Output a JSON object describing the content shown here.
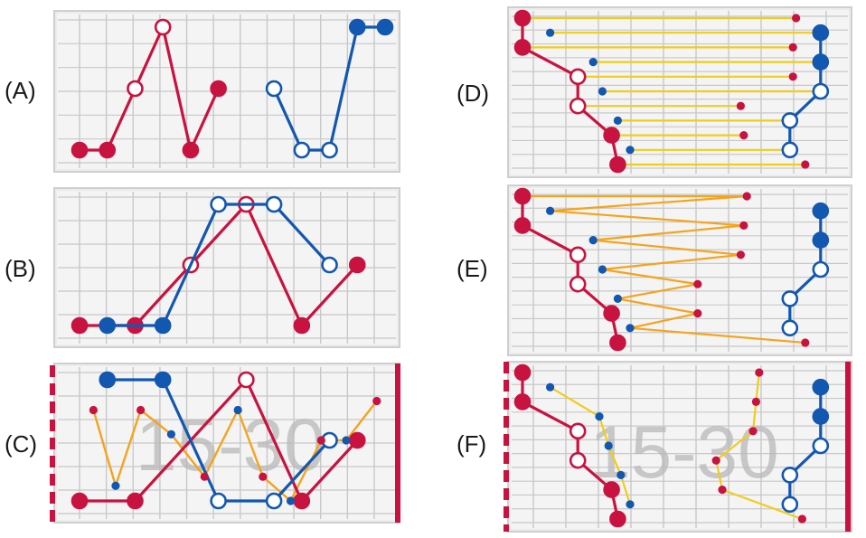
{
  "colors": {
    "red": "#c8123f",
    "blue": "#1257b0",
    "orange": "#f5a31c",
    "yellow": "#f1cc1a",
    "grid": "#c8c8c8",
    "panel_bg": "#ececec",
    "frame": "#cfcfcf"
  },
  "panels": [
    {
      "id": "A",
      "label": "(A)",
      "red_series": [
        {
          "col": 0,
          "level": 1,
          "filled": true
        },
        {
          "col": 1,
          "level": 1,
          "filled": true
        },
        {
          "col": 2,
          "level": 3,
          "filled": false
        },
        {
          "col": 3,
          "level": 5,
          "filled": false
        },
        {
          "col": 4,
          "level": 1,
          "filled": true
        },
        {
          "col": 5,
          "level": 3,
          "filled": true
        }
      ],
      "blue_series": [
        {
          "col": 7,
          "level": 3,
          "filled": false
        },
        {
          "col": 8,
          "level": 1,
          "filled": false
        },
        {
          "col": 9,
          "level": 1,
          "filled": false
        },
        {
          "col": 10,
          "level": 5,
          "filled": true
        },
        {
          "col": 11,
          "level": 5,
          "filled": true
        }
      ]
    },
    {
      "id": "B",
      "label": "(B)",
      "red_series": [
        {
          "col": 0,
          "level": 1,
          "filled": true
        },
        {
          "col": 2,
          "level": 1,
          "filled": true
        },
        {
          "col": 4,
          "level": 3,
          "filled": false
        },
        {
          "col": 6,
          "level": 5,
          "filled": false
        },
        {
          "col": 8,
          "level": 1,
          "filled": true
        },
        {
          "col": 10,
          "level": 3,
          "filled": true
        }
      ],
      "blue_series": [
        {
          "col": 1,
          "level": 1,
          "filled": true
        },
        {
          "col": 3,
          "level": 1,
          "filled": true
        },
        {
          "col": 5,
          "level": 5,
          "filled": false
        },
        {
          "col": 7,
          "level": 5,
          "filled": false
        },
        {
          "col": 9,
          "level": 3,
          "filled": false
        }
      ]
    },
    {
      "id": "C",
      "label": "(C)",
      "watermark": "15-30",
      "red_series": [
        {
          "col": 0,
          "level": 1,
          "filled": true
        },
        {
          "col": 2,
          "level": 1,
          "filled": true
        },
        {
          "col": 6,
          "level": 5,
          "filled": false
        },
        {
          "col": 8,
          "level": 1,
          "filled": true
        },
        {
          "col": 10,
          "level": 3,
          "filled": true
        }
      ],
      "blue_series": [
        {
          "col": 1,
          "level": 5,
          "filled": true
        },
        {
          "col": 3,
          "level": 5,
          "filled": true
        },
        {
          "col": 5,
          "level": 1,
          "filled": false
        },
        {
          "col": 7,
          "level": 1,
          "filled": false
        },
        {
          "col": 9,
          "level": 3,
          "filled": false
        }
      ],
      "orange_series": [
        {
          "x": 0.5,
          "y": 4.0,
          "dot": "red"
        },
        {
          "x": 1.3,
          "y": 1.5,
          "dot": "blue"
        },
        {
          "x": 2.2,
          "y": 4.0,
          "dot": "red"
        },
        {
          "x": 3.3,
          "y": 3.2,
          "dot": "blue"
        },
        {
          "x": 4.5,
          "y": 1.8,
          "dot": "red"
        },
        {
          "x": 5.7,
          "y": 4.0,
          "dot": "blue"
        },
        {
          "x": 6.6,
          "y": 1.8,
          "dot": "red"
        },
        {
          "x": 7.6,
          "y": 1.0,
          "dot": "blue"
        },
        {
          "x": 8.7,
          "y": 3.0,
          "dot": "red"
        },
        {
          "x": 9.6,
          "y": 3.0,
          "dot": "blue"
        },
        {
          "x": 10.7,
          "y": 4.3,
          "dot": "red"
        }
      ]
    },
    {
      "id": "D",
      "label": "(D)",
      "red_chain": [
        {
          "x": 0.0,
          "row": 0,
          "filled": true
        },
        {
          "x": 0.0,
          "row": 2,
          "filled": true
        },
        {
          "x": 1.8,
          "row": 4,
          "filled": false
        },
        {
          "x": 1.8,
          "row": 6,
          "filled": false
        },
        {
          "x": 2.9,
          "row": 8,
          "filled": true
        },
        {
          "x": 3.1,
          "row": 10,
          "filled": true
        }
      ],
      "blue_chain": [
        {
          "x": 9.7,
          "row": 1,
          "filled": true
        },
        {
          "x": 9.7,
          "row": 3,
          "filled": true
        },
        {
          "x": 9.7,
          "row": 5,
          "filled": false
        },
        {
          "x": 8.7,
          "row": 7,
          "filled": false
        },
        {
          "x": 8.7,
          "row": 9,
          "filled": false
        }
      ],
      "line_style": "yellow",
      "links": [
        {
          "x1": 0.0,
          "row": 0,
          "x2": 8.9,
          "right_dot": "red"
        },
        {
          "x1": 0.9,
          "row": 1,
          "x2": 9.7,
          "left_dot": "blue"
        },
        {
          "x1": 0.0,
          "row": 2,
          "x2": 8.8,
          "right_dot": "red"
        },
        {
          "x1": 2.3,
          "row": 3,
          "x2": 9.7,
          "left_dot": "blue"
        },
        {
          "x1": 1.8,
          "row": 4,
          "x2": 8.8,
          "right_dot": "red"
        },
        {
          "x1": 2.6,
          "row": 5,
          "x2": 9.7,
          "left_dot": "blue"
        },
        {
          "x1": 1.8,
          "row": 6,
          "x2": 7.1,
          "right_dot": "red"
        },
        {
          "x1": 3.1,
          "row": 7,
          "x2": 8.7,
          "left_dot": "blue"
        },
        {
          "x1": 2.9,
          "row": 8,
          "x2": 7.2,
          "right_dot": "red"
        },
        {
          "x1": 3.5,
          "row": 9,
          "x2": 8.7,
          "left_dot": "blue"
        },
        {
          "x1": 3.1,
          "row": 10,
          "x2": 9.2,
          "right_dot": "red"
        }
      ]
    },
    {
      "id": "E",
      "label": "(E)",
      "red_chain": [
        {
          "x": 0.0,
          "row": 0,
          "filled": true
        },
        {
          "x": 0.0,
          "row": 2,
          "filled": true
        },
        {
          "x": 1.8,
          "row": 4,
          "filled": false
        },
        {
          "x": 1.8,
          "row": 6,
          "filled": false
        },
        {
          "x": 2.9,
          "row": 8,
          "filled": true
        },
        {
          "x": 3.1,
          "row": 10,
          "filled": true
        }
      ],
      "blue_chain": [
        {
          "x": 9.7,
          "row": 1,
          "filled": true
        },
        {
          "x": 9.7,
          "row": 3,
          "filled": true
        },
        {
          "x": 9.7,
          "row": 5,
          "filled": false
        },
        {
          "x": 8.7,
          "row": 7,
          "filled": false
        },
        {
          "x": 8.7,
          "row": 9,
          "filled": false
        }
      ],
      "zigzag": [
        {
          "x": 7.3,
          "row": 0,
          "dot": "red"
        },
        {
          "x": 0.9,
          "row": 1,
          "dot": "blue"
        },
        {
          "x": 7.2,
          "row": 2,
          "dot": "red"
        },
        {
          "x": 2.3,
          "row": 3,
          "dot": "blue"
        },
        {
          "x": 7.1,
          "row": 4,
          "dot": "red"
        },
        {
          "x": 2.6,
          "row": 5,
          "dot": "blue"
        },
        {
          "x": 5.7,
          "row": 6,
          "dot": "red"
        },
        {
          "x": 3.1,
          "row": 7,
          "dot": "blue"
        },
        {
          "x": 5.7,
          "row": 8,
          "dot": "red"
        },
        {
          "x": 3.5,
          "row": 9,
          "dot": "blue"
        },
        {
          "x": 9.2,
          "row": 10,
          "dot": "red"
        }
      ]
    },
    {
      "id": "F",
      "label": "(F)",
      "watermark": "15-30",
      "red_chain": [
        {
          "x": 0.0,
          "row": 0,
          "filled": true
        },
        {
          "x": 0.0,
          "row": 2,
          "filled": true
        },
        {
          "x": 1.8,
          "row": 4,
          "filled": false
        },
        {
          "x": 1.8,
          "row": 6,
          "filled": false
        },
        {
          "x": 2.9,
          "row": 8,
          "filled": true
        },
        {
          "x": 3.1,
          "row": 10,
          "filled": true
        }
      ],
      "blue_chain": [
        {
          "x": 9.7,
          "row": 1,
          "filled": true
        },
        {
          "x": 9.7,
          "row": 3,
          "filled": true
        },
        {
          "x": 9.7,
          "row": 5,
          "filled": false
        },
        {
          "x": 8.7,
          "row": 7,
          "filled": false
        },
        {
          "x": 8.7,
          "row": 9,
          "filled": false
        }
      ],
      "blue_path": [
        {
          "x": 0.9,
          "row": 1
        },
        {
          "x": 2.5,
          "row": 3
        },
        {
          "x": 2.8,
          "row": 5
        },
        {
          "x": 3.2,
          "row": 7
        },
        {
          "x": 3.5,
          "row": 9
        }
      ],
      "red_path": [
        {
          "x": 7.7,
          "row": 0
        },
        {
          "x": 7.6,
          "row": 2
        },
        {
          "x": 7.5,
          "row": 4
        },
        {
          "x": 6.3,
          "row": 6
        },
        {
          "x": 6.5,
          "row": 8
        },
        {
          "x": 9.1,
          "row": 10
        }
      ]
    }
  ]
}
